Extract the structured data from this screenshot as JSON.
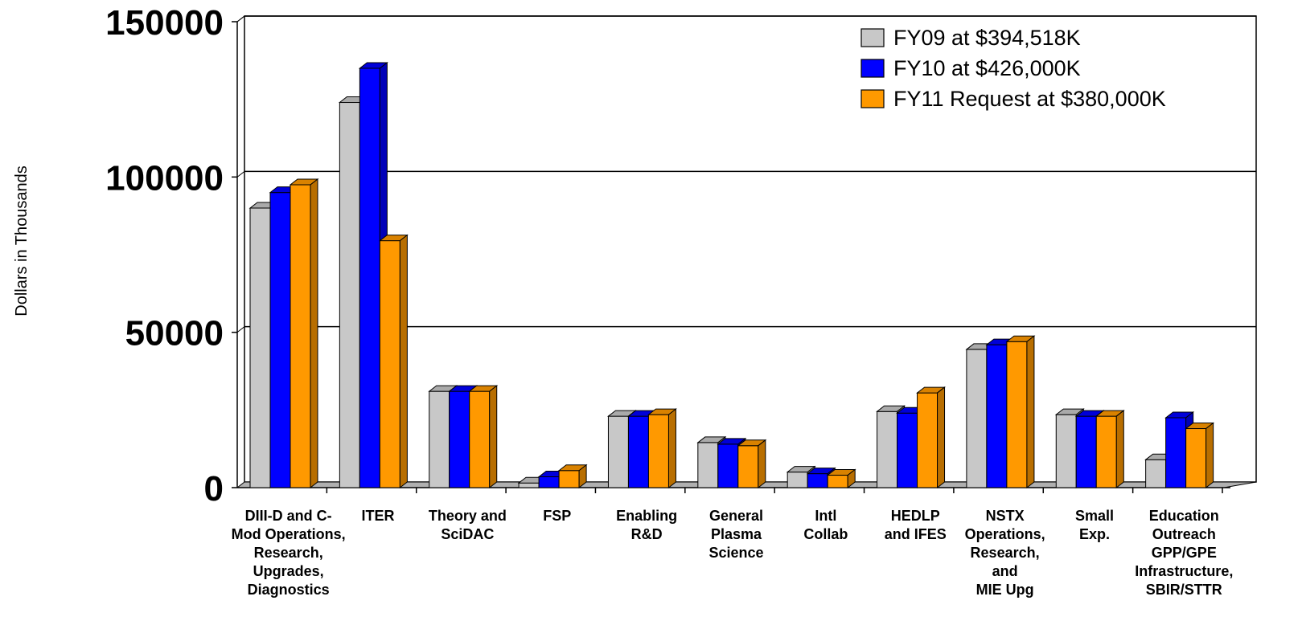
{
  "chart_data": {
    "type": "bar",
    "ylabel": "Dollars in Thousands",
    "xlabel": "",
    "ylim": [
      0,
      150000
    ],
    "yticks": [
      "0",
      "50000",
      "100000",
      "150000"
    ],
    "grid": true,
    "legend_position": "top-right",
    "categories": [
      [
        "DIII-D and C-",
        "Mod Operations,",
        "Research,",
        "Upgrades,",
        "Diagnostics"
      ],
      [
        "ITER"
      ],
      [
        "Theory and",
        "SciDAC"
      ],
      [
        "FSP"
      ],
      [
        "Enabling",
        "R&D"
      ],
      [
        "General",
        "Plasma",
        "Science"
      ],
      [
        "Intl",
        "Collab"
      ],
      [
        "HEDLP",
        "and IFES"
      ],
      [
        "NSTX",
        "Operations,",
        "Research,",
        "and",
        "MIE Upg"
      ],
      [
        "Small",
        "Exp."
      ],
      [
        "Education",
        "Outreach",
        "GPP/GPE",
        "Infrastructure,",
        "SBIR/STTR"
      ]
    ],
    "series": [
      {
        "name": "FY09 at $394,518K",
        "color": "#c8c8c8",
        "values": [
          90000,
          124000,
          31000,
          1500,
          23000,
          14500,
          5000,
          24500,
          44500,
          23500,
          9000
        ]
      },
      {
        "name": "FY10 at $426,000K",
        "color": "#0000ff",
        "values": [
          95000,
          135000,
          31000,
          3500,
          23000,
          14000,
          4500,
          24000,
          46000,
          23000,
          22500
        ]
      },
      {
        "name": "FY11 Request at $380,000K",
        "color": "#ff9900",
        "values": [
          97500,
          79500,
          31000,
          5500,
          23500,
          13500,
          4000,
          30500,
          47000,
          23000,
          19000
        ]
      }
    ]
  }
}
